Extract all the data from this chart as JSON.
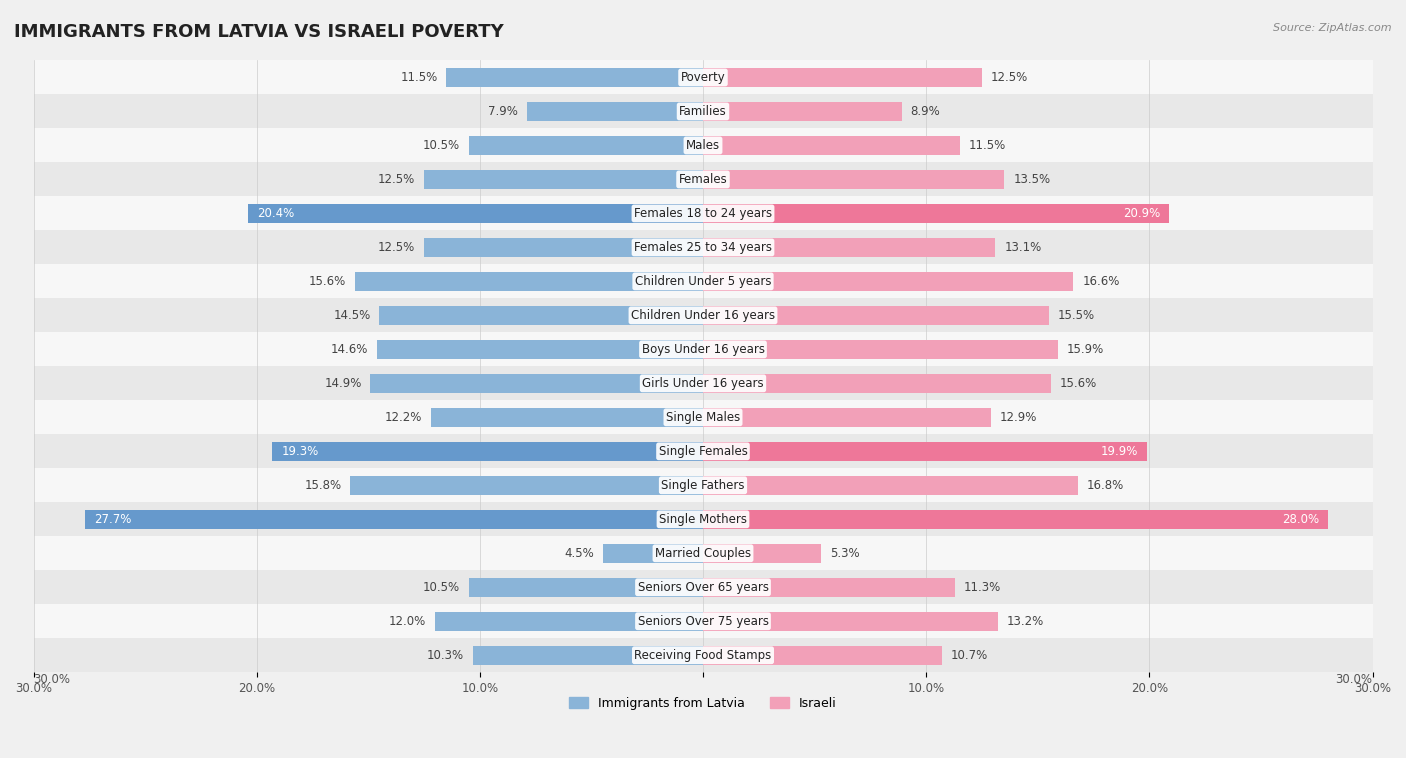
{
  "title": "IMMIGRANTS FROM LATVIA VS ISRAELI POVERTY",
  "source": "Source: ZipAtlas.com",
  "categories": [
    "Poverty",
    "Families",
    "Males",
    "Females",
    "Females 18 to 24 years",
    "Females 25 to 34 years",
    "Children Under 5 years",
    "Children Under 16 years",
    "Boys Under 16 years",
    "Girls Under 16 years",
    "Single Males",
    "Single Females",
    "Single Fathers",
    "Single Mothers",
    "Married Couples",
    "Seniors Over 65 years",
    "Seniors Over 75 years",
    "Receiving Food Stamps"
  ],
  "latvia_values": [
    11.5,
    7.9,
    10.5,
    12.5,
    20.4,
    12.5,
    15.6,
    14.5,
    14.6,
    14.9,
    12.2,
    19.3,
    15.8,
    27.7,
    4.5,
    10.5,
    12.0,
    10.3
  ],
  "israeli_values": [
    12.5,
    8.9,
    11.5,
    13.5,
    20.9,
    13.1,
    16.6,
    15.5,
    15.9,
    15.6,
    12.9,
    19.9,
    16.8,
    28.0,
    5.3,
    11.3,
    13.2,
    10.7
  ],
  "latvia_color": "#8ab4d8",
  "israeli_color": "#f2a0b8",
  "latvia_highlight_color": "#6699cc",
  "israeli_highlight_color": "#ee7799",
  "highlight_rows": [
    4,
    11,
    13
  ],
  "bar_height": 0.55,
  "xlim": 30,
  "background_color": "#f0f0f0",
  "row_bg_colors": [
    "#f7f7f7",
    "#e8e8e8"
  ],
  "title_fontsize": 13,
  "label_fontsize": 8.5,
  "value_fontsize": 8.5,
  "legend_label_latvia": "Immigrants from Latvia",
  "legend_label_israeli": "Israeli"
}
